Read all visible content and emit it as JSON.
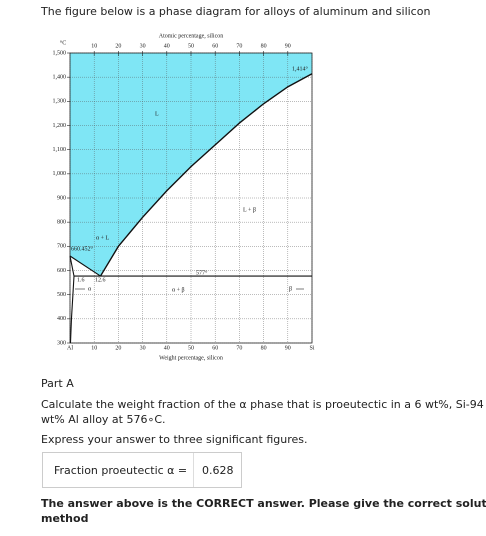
{
  "intro": "The figure below is a phase diagram for alloys of aluminum and silicon",
  "figure": {
    "top_axis_title": "Atomic percentage, silicon",
    "top_ticks": [
      10,
      20,
      30,
      40,
      50,
      60,
      70,
      80,
      90
    ],
    "x_axis_title": "Weight percentage, silicon",
    "y_unit": "°C",
    "xlim": [
      0,
      100
    ],
    "ylim": [
      300,
      1500
    ],
    "xticks": [
      {
        "value": 0,
        "label": "Al"
      },
      10,
      20,
      30,
      40,
      50,
      60,
      70,
      80,
      90,
      {
        "value": 100,
        "label": "Si"
      }
    ],
    "yticks": [
      300,
      400,
      500,
      600,
      700,
      800,
      900,
      {
        "value": 1000,
        "label": "1,000"
      },
      {
        "value": 1100,
        "label": "1,100"
      },
      {
        "value": 1200,
        "label": "1,200"
      },
      {
        "value": 1300,
        "label": "1,300"
      },
      {
        "value": 1400,
        "label": "1,400"
      },
      {
        "value": 1500,
        "label": "1,500"
      }
    ],
    "liquid_color": "#7fe6f5",
    "liquidus_al": {
      "x": [
        0,
        12.6
      ],
      "y": [
        660,
        577
      ]
    },
    "liquidus_si": {
      "x": [
        12.6,
        20,
        30,
        40,
        50,
        60,
        70,
        80,
        90,
        100
      ],
      "y": [
        577,
        700,
        820,
        930,
        1030,
        1120,
        1210,
        1290,
        1360,
        1414
      ]
    },
    "solidus": {
      "x": [
        0,
        1.65
      ],
      "y": [
        660,
        577
      ]
    },
    "solvus": {
      "x": [
        1.65,
        1.2,
        0.6,
        0.2
      ],
      "y": [
        577,
        500,
        400,
        300
      ]
    },
    "eutectic": {
      "x": [
        1.65,
        100
      ],
      "y": [
        577,
        577
      ]
    },
    "labels": {
      "liquid": "L",
      "alpha_liquid": "α + L",
      "al_melt": "660.452°",
      "liquid_beta": "L + β",
      "eutectic_temp": "577°",
      "alpha_beta": "α + β",
      "alpha_limit": "1.6",
      "eutectic_comp": "12.6",
      "alpha": "α",
      "beta": "β",
      "si_melt": "1,414°"
    }
  },
  "part": "Part A",
  "question": [
    "Calculate the weight fraction of the α phase that is proeutectic in a 6 wt%, Si-94",
    "wt% Al alloy at 576∘C."
  ],
  "instruction": "Express your answer to three significant figures.",
  "answer_label": "Fraction proeutectic α =",
  "answer_value": "0.628",
  "note": [
    "The answer above is the CORRECT answer. Please give the correct solution",
    "method"
  ]
}
